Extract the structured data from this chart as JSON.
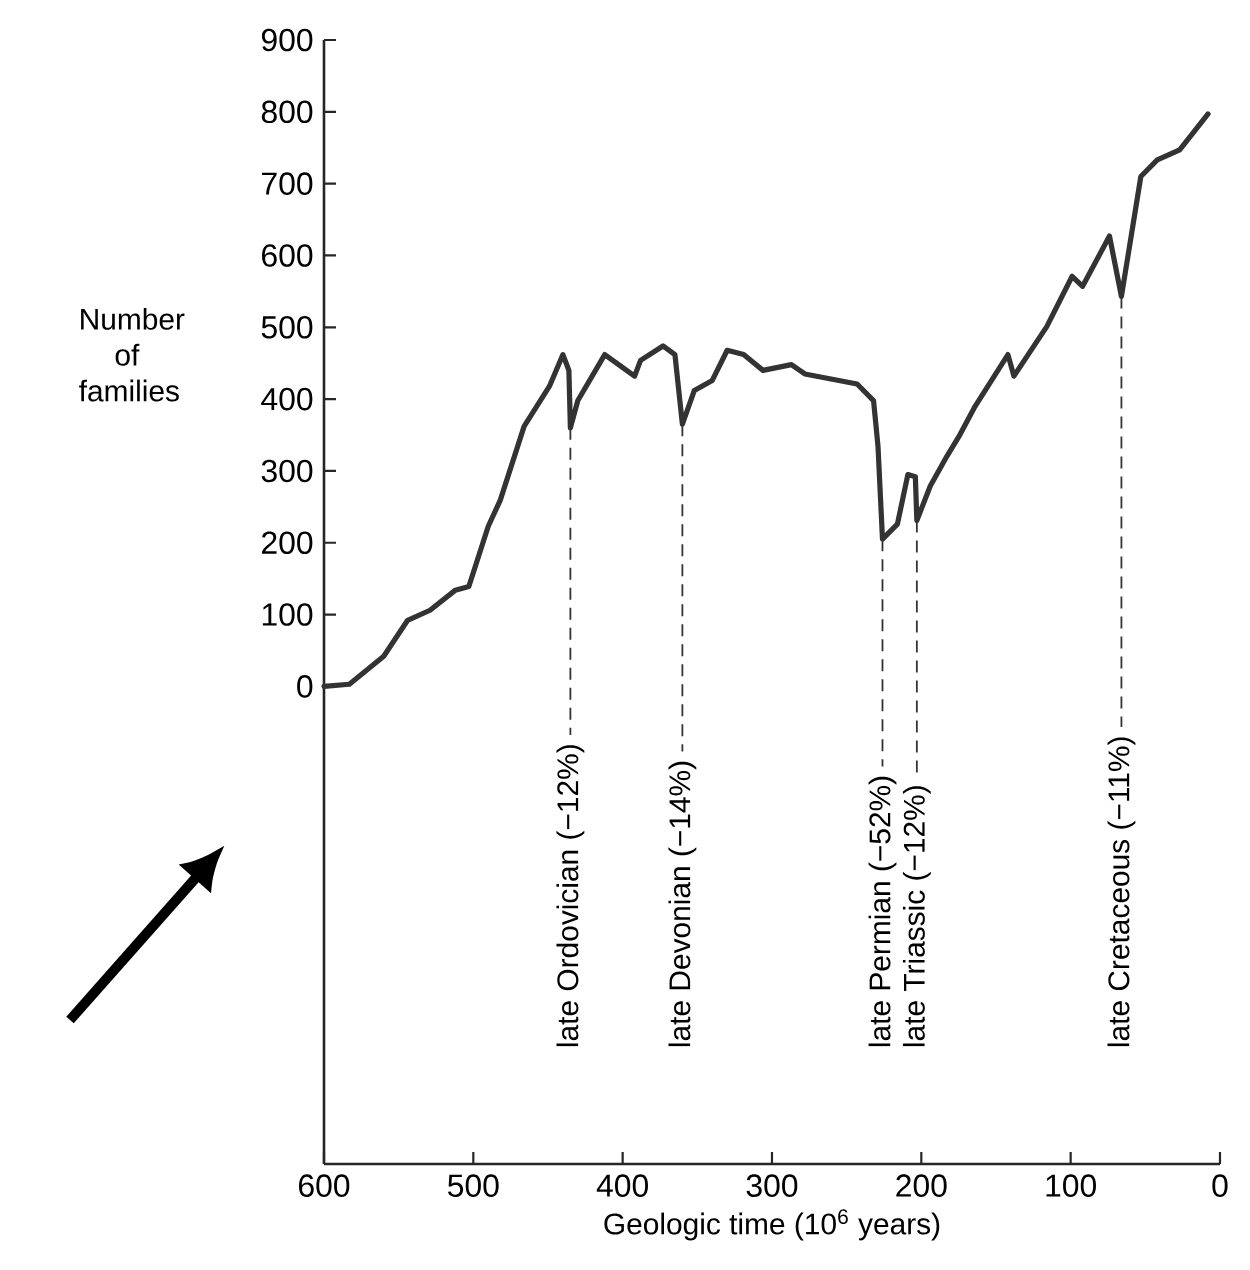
{
  "chart_data": {
    "type": "line",
    "xlabel": "Geologic time (10$^{6}$ years)",
    "ylabel": "Number of families",
    "series": [
      {
        "color": "#333333",
        "x": [
          600,
          583,
          560,
          544,
          529,
          512,
          503,
          490,
          482,
          466,
          449,
          440,
          436,
          435,
          430,
          412,
          392,
          388,
          373,
          365,
          360,
          352,
          340,
          330,
          319,
          306,
          287,
          278,
          243,
          232,
          229,
          226,
          216,
          209,
          204,
          203,
          194,
          183,
          174,
          164,
          142,
          138,
          116,
          99,
          92,
          74,
          66,
          53,
          42,
          27,
          8
        ],
        "values": [
          0,
          3,
          42,
          92,
          106,
          134,
          139,
          223,
          259,
          362,
          418,
          462,
          440,
          360,
          398,
          462,
          432,
          454,
          474,
          462,
          365,
          412,
          426,
          468,
          462,
          440,
          448,
          435,
          421,
          398,
          334,
          205,
          226,
          295,
          292,
          231,
          279,
          320,
          351,
          390,
          462,
          432,
          501,
          571,
          557,
          627,
          543,
          710,
          733,
          747,
          797
        ]
      }
    ],
    "xlim": [
      600,
      0
    ],
    "ylim": [
      -665,
      900
    ],
    "xticks": [
      600,
      500,
      400,
      300,
      200,
      100,
      0
    ],
    "yticks": [
      0,
      100,
      200,
      300,
      400,
      500,
      600,
      700,
      800,
      900
    ],
    "line_style": "solid",
    "annotations": [
      {
        "text": "late Ordovician (−12%)",
        "x": 435,
        "y": 360
      },
      {
        "text": "late Devonian (−14%)",
        "x": 360,
        "y": 365
      },
      {
        "text": "late Permian (−52%)",
        "x": 226,
        "y": 205
      },
      {
        "text": "late Triassic (−12%)",
        "x": 203,
        "y": 231
      },
      {
        "text": "late Cretaceous (−11%)",
        "x": 66,
        "y": 543
      }
    ]
  }
}
